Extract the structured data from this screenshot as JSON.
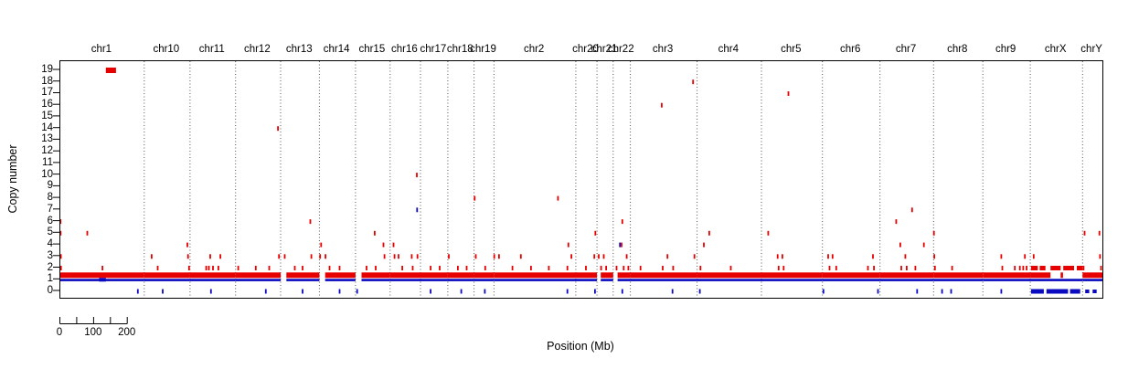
{
  "chart_data": {
    "type": "scatter",
    "title": "",
    "ylabel": "Copy number",
    "xlabel": "Position (Mb)",
    "colors": {
      "gain": "#e60000",
      "loss": "#0a0ac0",
      "boundary": "#555555",
      "axis": "#000000"
    },
    "y_axis": {
      "min": 0,
      "max": 19,
      "ticks": [
        19,
        18,
        17,
        16,
        15,
        14,
        13,
        12,
        11,
        10,
        9,
        8,
        7,
        6,
        5,
        4,
        3,
        2,
        1,
        0
      ],
      "tick_labels": [
        "19",
        "18",
        "17",
        "16",
        "15",
        "14",
        "13",
        "12",
        "11",
        "10",
        "9",
        "8",
        "7",
        "6",
        "5",
        "4",
        "3",
        "2",
        "1",
        "0"
      ]
    },
    "scale_bar": {
      "length_mb": 200,
      "tick_every_mb": 50,
      "labels": [
        {
          "text": "0",
          "mb": 0
        },
        {
          "text": "100",
          "mb": 100
        },
        {
          "text": "200",
          "mb": 200
        }
      ]
    },
    "chromosomes": [
      {
        "name": "chr1",
        "length_mb": 249
      },
      {
        "name": "chr10",
        "length_mb": 136
      },
      {
        "name": "chr11",
        "length_mb": 135
      },
      {
        "name": "chr12",
        "length_mb": 134
      },
      {
        "name": "chr13",
        "length_mb": 115
      },
      {
        "name": "chr14",
        "length_mb": 107
      },
      {
        "name": "chr15",
        "length_mb": 103
      },
      {
        "name": "chr16",
        "length_mb": 90
      },
      {
        "name": "chr17",
        "length_mb": 81
      },
      {
        "name": "chr18",
        "length_mb": 78
      },
      {
        "name": "chr19",
        "length_mb": 59
      },
      {
        "name": "chr2",
        "length_mb": 243
      },
      {
        "name": "chr20",
        "length_mb": 63
      },
      {
        "name": "chr21",
        "length_mb": 48
      },
      {
        "name": "chr22",
        "length_mb": 51
      },
      {
        "name": "chr3",
        "length_mb": 198
      },
      {
        "name": "chr4",
        "length_mb": 191
      },
      {
        "name": "chr5",
        "length_mb": 181
      },
      {
        "name": "chr6",
        "length_mb": 171
      },
      {
        "name": "chr7",
        "length_mb": 159
      },
      {
        "name": "chr8",
        "length_mb": 146
      },
      {
        "name": "chr9",
        "length_mb": 141
      },
      {
        "name": "chrX",
        "length_mb": 155
      },
      {
        "name": "chrY",
        "length_mb": 59
      }
    ],
    "baseline": {
      "gain_band_cn": [
        1.05,
        1.55
      ],
      "loss_line_cn": 1
    },
    "gain_baseline_spans": {
      "chr1": [
        [
          0,
          249
        ]
      ],
      "chr10": [
        [
          0,
          136
        ]
      ],
      "chr11": [
        [
          0,
          135
        ]
      ],
      "chr12": [
        [
          0,
          134
        ]
      ],
      "chr13": [
        [
          17,
          115
        ]
      ],
      "chr14": [
        [
          17,
          107
        ]
      ],
      "chr15": [
        [
          18,
          103
        ]
      ],
      "chr16": [
        [
          0,
          90
        ]
      ],
      "chr17": [
        [
          0,
          81
        ]
      ],
      "chr18": [
        [
          0,
          78
        ]
      ],
      "chr19": [
        [
          0,
          59
        ]
      ],
      "chr2": [
        [
          0,
          243
        ]
      ],
      "chr20": [
        [
          0,
          63
        ]
      ],
      "chr21": [
        [
          11,
          48
        ]
      ],
      "chr22": [
        [
          13,
          51
        ]
      ],
      "chr3": [
        [
          0,
          198
        ]
      ],
      "chr4": [
        [
          0,
          191
        ]
      ],
      "chr5": [
        [
          0,
          181
        ]
      ],
      "chr6": [
        [
          0,
          171
        ]
      ],
      "chr7": [
        [
          0,
          159
        ]
      ],
      "chr8": [
        [
          0,
          146
        ]
      ],
      "chr9": [
        [
          0,
          141
        ]
      ],
      "chrX": [
        [
          0,
          60
        ],
        [
          90,
          97
        ]
      ],
      "chrY": [
        [
          0,
          59
        ]
      ]
    },
    "loss_baseline_spans": {
      "chr1": [
        [
          0,
          249
        ]
      ],
      "chr10": [
        [
          0,
          136
        ]
      ],
      "chr11": [
        [
          0,
          135
        ]
      ],
      "chr12": [
        [
          0,
          134
        ]
      ],
      "chr13": [
        [
          17,
          115
        ]
      ],
      "chr14": [
        [
          17,
          107
        ]
      ],
      "chr15": [
        [
          18,
          103
        ]
      ],
      "chr16": [
        [
          0,
          90
        ]
      ],
      "chr17": [
        [
          0,
          81
        ]
      ],
      "chr18": [
        [
          0,
          78
        ]
      ],
      "chr19": [
        [
          0,
          59
        ]
      ],
      "chr2": [
        [
          0,
          243
        ]
      ],
      "chr20": [
        [
          0,
          63
        ]
      ],
      "chr21": [
        [
          11,
          48
        ]
      ],
      "chr22": [
        [
          13,
          51
        ]
      ],
      "chr3": [
        [
          0,
          198
        ]
      ],
      "chr4": [
        [
          0,
          191
        ]
      ],
      "chr5": [
        [
          0,
          181
        ]
      ],
      "chr6": [
        [
          0,
          171
        ]
      ],
      "chr7": [
        [
          0,
          159
        ]
      ],
      "chr8": [
        [
          0,
          146
        ]
      ],
      "chr9": [
        [
          0,
          141
        ]
      ],
      "chrX": [
        [
          0,
          155
        ]
      ],
      "chrY": [
        [
          0,
          59
        ]
      ]
    },
    "segments": [
      [
        "chr1",
        135,
        165,
        19,
        "R",
        6
      ],
      [
        "chr1",
        115,
        135,
        1,
        "B",
        4
      ],
      [
        "chrX",
        2,
        22,
        2,
        "R",
        5
      ],
      [
        "chrX",
        28,
        45,
        2,
        "R",
        5
      ],
      [
        "chrX",
        60,
        90,
        2,
        "R",
        5
      ],
      [
        "chrX",
        98,
        130,
        2,
        "R",
        5
      ],
      [
        "chrX",
        138,
        155,
        2,
        "R",
        5
      ],
      [
        "chrX",
        2,
        40,
        0,
        "B",
        5
      ],
      [
        "chrX",
        48,
        112,
        0,
        "B",
        5
      ],
      [
        "chrX",
        118,
        148,
        0,
        "B",
        5
      ],
      [
        "chrY",
        8,
        20,
        0,
        "B",
        4
      ],
      [
        "chrY",
        30,
        42,
        0,
        "B",
        4
      ]
    ],
    "gain_ticks": [
      [
        "chr1",
        0.5,
        6
      ],
      [
        "chr1",
        0.8,
        5
      ],
      [
        "chr1",
        1.5,
        3
      ],
      [
        "chr1",
        2,
        2
      ],
      [
        "chr1",
        80,
        5
      ],
      [
        "chr1",
        125,
        2
      ],
      [
        "chr10",
        22,
        3
      ],
      [
        "chr10",
        40,
        2
      ],
      [
        "chr10",
        128,
        4
      ],
      [
        "chr10",
        130,
        3
      ],
      [
        "chr10",
        133,
        2
      ],
      [
        "chr11",
        48,
        2
      ],
      [
        "chr11",
        56,
        2
      ],
      [
        "chr11",
        60,
        3
      ],
      [
        "chr11",
        68,
        2
      ],
      [
        "chr11",
        84,
        2
      ],
      [
        "chr11",
        90,
        3
      ],
      [
        "chr12",
        8,
        2
      ],
      [
        "chr12",
        60,
        2
      ],
      [
        "chr12",
        100,
        2
      ],
      [
        "chr12",
        126,
        14
      ],
      [
        "chr12",
        129,
        3
      ],
      [
        "chr13",
        12,
        3
      ],
      [
        "chr13",
        42,
        2
      ],
      [
        "chr13",
        65,
        2
      ],
      [
        "chr13",
        88,
        6
      ],
      [
        "chr13",
        91,
        3
      ],
      [
        "chr14",
        2,
        3
      ],
      [
        "chr14",
        5,
        4
      ],
      [
        "chr14",
        18,
        3
      ],
      [
        "chr14",
        30,
        2
      ],
      [
        "chr14",
        60,
        2
      ],
      [
        "chr15",
        33,
        2
      ],
      [
        "chr15",
        57,
        5
      ],
      [
        "chr15",
        60,
        2
      ],
      [
        "chr15",
        83,
        4
      ],
      [
        "chr15",
        86,
        3
      ],
      [
        "chr16",
        10,
        4
      ],
      [
        "chr16",
        13,
        3
      ],
      [
        "chr16",
        25,
        3
      ],
      [
        "chr16",
        36,
        2
      ],
      [
        "chr16",
        64,
        3
      ],
      [
        "chr16",
        67,
        2
      ],
      [
        "chr16",
        79,
        10
      ],
      [
        "chr16",
        81,
        3
      ],
      [
        "chr17",
        30,
        2
      ],
      [
        "chr17",
        57,
        2
      ],
      [
        "chr18",
        3,
        3
      ],
      [
        "chr18",
        30,
        2
      ],
      [
        "chr18",
        56,
        2
      ],
      [
        "chr19",
        2,
        8
      ],
      [
        "chr19",
        5,
        3
      ],
      [
        "chr19",
        33,
        2
      ],
      [
        "chr2",
        1,
        3
      ],
      [
        "chr2",
        15,
        3
      ],
      [
        "chr2",
        55,
        2
      ],
      [
        "chr2",
        80,
        3
      ],
      [
        "chr2",
        110,
        2
      ],
      [
        "chr2",
        163,
        2
      ],
      [
        "chr2",
        190,
        8
      ],
      [
        "chr2",
        218,
        2
      ],
      [
        "chr2",
        221,
        4
      ],
      [
        "chr2",
        230,
        3
      ],
      [
        "chr20",
        30,
        2
      ],
      [
        "chr20",
        55,
        3
      ],
      [
        "chr20",
        58,
        5
      ],
      [
        "chr21",
        5,
        3
      ],
      [
        "chr21",
        12,
        2
      ],
      [
        "chr21",
        20,
        3
      ],
      [
        "chr21",
        27,
        2
      ],
      [
        "chr22",
        10,
        2
      ],
      [
        "chr22",
        25,
        4
      ],
      [
        "chr22",
        27,
        6
      ],
      [
        "chr22",
        31,
        2
      ],
      [
        "chr22",
        40,
        3
      ],
      [
        "chr22",
        45,
        2
      ],
      [
        "chr3",
        30,
        2
      ],
      [
        "chr3",
        93,
        16
      ],
      [
        "chr3",
        96,
        2
      ],
      [
        "chr3",
        110,
        3
      ],
      [
        "chr3",
        127,
        2
      ],
      [
        "chr3",
        186,
        18
      ],
      [
        "chr3",
        190,
        3
      ],
      [
        "chr4",
        10,
        2
      ],
      [
        "chr4",
        20,
        4
      ],
      [
        "chr4",
        36,
        5
      ],
      [
        "chr4",
        100,
        2
      ],
      [
        "chr5",
        20,
        5
      ],
      [
        "chr5",
        48,
        3
      ],
      [
        "chr5",
        51,
        2
      ],
      [
        "chr5",
        62,
        3
      ],
      [
        "chr5",
        66,
        2
      ],
      [
        "chr5",
        80,
        17
      ],
      [
        "chr6",
        17,
        3
      ],
      [
        "chr6",
        21,
        2
      ],
      [
        "chr6",
        30,
        3
      ],
      [
        "chr6",
        41,
        2
      ],
      [
        "chr6",
        135,
        2
      ],
      [
        "chr6",
        150,
        3
      ],
      [
        "chr6",
        153,
        2
      ],
      [
        "chr7",
        48,
        6
      ],
      [
        "chr7",
        60,
        4
      ],
      [
        "chr7",
        63,
        2
      ],
      [
        "chr7",
        75,
        3
      ],
      [
        "chr7",
        79,
        2
      ],
      [
        "chr7",
        95,
        7
      ],
      [
        "chr7",
        105,
        2
      ],
      [
        "chr7",
        130,
        4
      ],
      [
        "chr8",
        1,
        5
      ],
      [
        "chr8",
        2,
        3
      ],
      [
        "chr8",
        4,
        2
      ],
      [
        "chr8",
        55,
        2
      ],
      [
        "chr9",
        55,
        3
      ],
      [
        "chr9",
        58,
        2
      ],
      [
        "chr9",
        95,
        2
      ],
      [
        "chr9",
        110,
        2
      ],
      [
        "chr9",
        120,
        2
      ],
      [
        "chr9",
        125,
        3
      ],
      [
        "chr9",
        130,
        2
      ],
      [
        "chrX",
        10,
        3
      ],
      [
        "chrY",
        6,
        5
      ],
      [
        "chrY",
        3,
        2
      ],
      [
        "chrY",
        50,
        5
      ],
      [
        "chrY",
        52,
        3
      ],
      [
        "chrY",
        55,
        2
      ]
    ],
    "loss_ticks": [
      [
        "chr16",
        80,
        7
      ],
      [
        "chr22",
        20,
        4
      ],
      [
        "chr1",
        230,
        0
      ],
      [
        "chr10",
        55,
        0
      ],
      [
        "chr11",
        62,
        0
      ],
      [
        "chr12",
        90,
        0
      ],
      [
        "chr13",
        65,
        0
      ],
      [
        "chr14",
        60,
        0
      ],
      [
        "chr15",
        5,
        0
      ],
      [
        "chr17",
        30,
        0
      ],
      [
        "chr18",
        40,
        0
      ],
      [
        "chr19",
        32,
        0
      ],
      [
        "chr2",
        218,
        0
      ],
      [
        "chr20",
        57,
        0
      ],
      [
        "chr22",
        27,
        0
      ],
      [
        "chr3",
        125,
        0
      ],
      [
        "chr4",
        8,
        0
      ],
      [
        "chr6",
        3,
        0
      ],
      [
        "chr6",
        165,
        0
      ],
      [
        "chr7",
        110,
        0
      ],
      [
        "chr8",
        25,
        0
      ],
      [
        "chr8",
        52,
        0
      ],
      [
        "chr9",
        55,
        0
      ]
    ]
  }
}
